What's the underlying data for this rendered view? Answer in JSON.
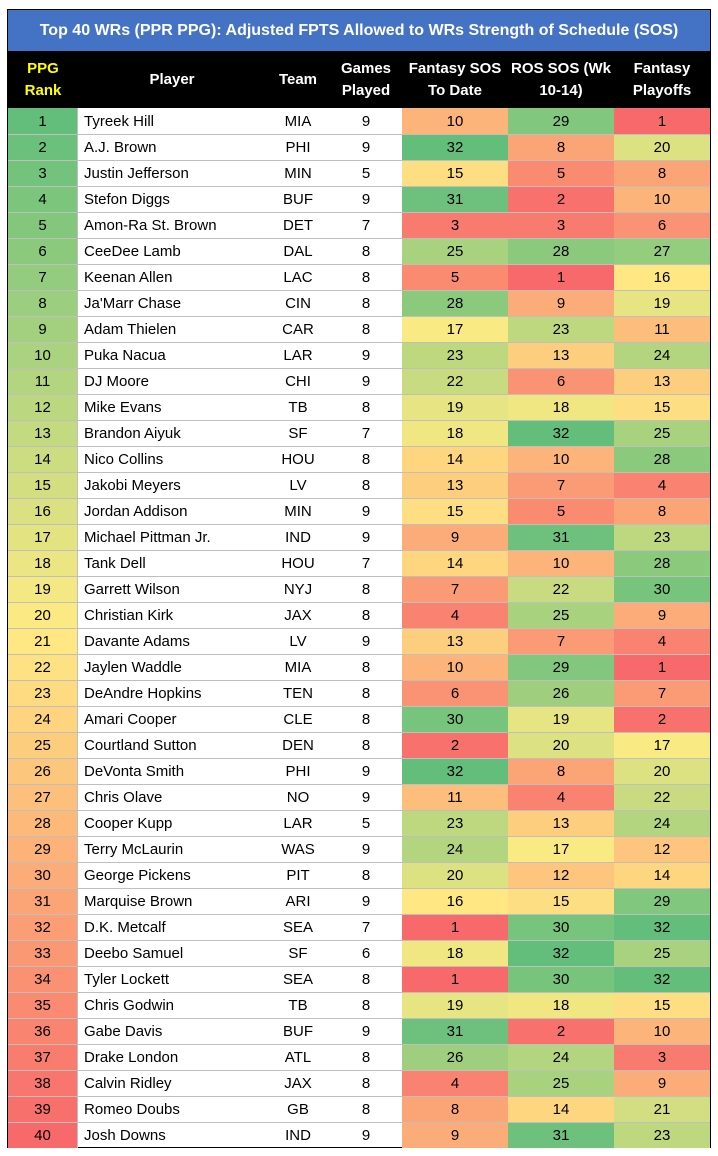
{
  "title": "Top 40 WRs (PPR PPG): Adjusted FPTS Allowed to WRs Strength of Schedule (SOS)",
  "headers": {
    "rank": "PPG Rank",
    "player": "Player",
    "team": "Team",
    "games": "Games Played",
    "sos_to_date": "Fantasy SOS To Date",
    "ros_sos": "ROS SOS (Wk 10-14)",
    "playoffs": "Fantasy Playoffs"
  },
  "rows": [
    {
      "rank": "1",
      "player": "Tyreek Hill",
      "team": "MIA",
      "games": "9",
      "sos": "10",
      "ros": "29",
      "playoffs": "1"
    },
    {
      "rank": "2",
      "player": "A.J. Brown",
      "team": "PHI",
      "games": "9",
      "sos": "32",
      "ros": "8",
      "playoffs": "20"
    },
    {
      "rank": "3",
      "player": "Justin Jefferson",
      "team": "MIN",
      "games": "5",
      "sos": "15",
      "ros": "5",
      "playoffs": "8"
    },
    {
      "rank": "4",
      "player": "Stefon Diggs",
      "team": "BUF",
      "games": "9",
      "sos": "31",
      "ros": "2",
      "playoffs": "10"
    },
    {
      "rank": "5",
      "player": "Amon-Ra St. Brown",
      "team": "DET",
      "games": "7",
      "sos": "3",
      "ros": "3",
      "playoffs": "6"
    },
    {
      "rank": "6",
      "player": "CeeDee Lamb",
      "team": "DAL",
      "games": "8",
      "sos": "25",
      "ros": "28",
      "playoffs": "27"
    },
    {
      "rank": "7",
      "player": "Keenan Allen",
      "team": "LAC",
      "games": "8",
      "sos": "5",
      "ros": "1",
      "playoffs": "16"
    },
    {
      "rank": "8",
      "player": "Ja'Marr Chase",
      "team": "CIN",
      "games": "8",
      "sos": "28",
      "ros": "9",
      "playoffs": "19"
    },
    {
      "rank": "9",
      "player": "Adam Thielen",
      "team": "CAR",
      "games": "8",
      "sos": "17",
      "ros": "23",
      "playoffs": "11"
    },
    {
      "rank": "10",
      "player": "Puka Nacua",
      "team": "LAR",
      "games": "9",
      "sos": "23",
      "ros": "13",
      "playoffs": "24"
    },
    {
      "rank": "11",
      "player": "DJ Moore",
      "team": "CHI",
      "games": "9",
      "sos": "22",
      "ros": "6",
      "playoffs": "13"
    },
    {
      "rank": "12",
      "player": "Mike Evans",
      "team": "TB",
      "games": "8",
      "sos": "19",
      "ros": "18",
      "playoffs": "15"
    },
    {
      "rank": "13",
      "player": "Brandon Aiyuk",
      "team": "SF",
      "games": "7",
      "sos": "18",
      "ros": "32",
      "playoffs": "25"
    },
    {
      "rank": "14",
      "player": "Nico Collins",
      "team": "HOU",
      "games": "8",
      "sos": "14",
      "ros": "10",
      "playoffs": "28"
    },
    {
      "rank": "15",
      "player": "Jakobi Meyers",
      "team": "LV",
      "games": "8",
      "sos": "13",
      "ros": "7",
      "playoffs": "4"
    },
    {
      "rank": "16",
      "player": "Jordan Addison",
      "team": "MIN",
      "games": "9",
      "sos": "15",
      "ros": "5",
      "playoffs": "8"
    },
    {
      "rank": "17",
      "player": "Michael Pittman Jr.",
      "team": "IND",
      "games": "9",
      "sos": "9",
      "ros": "31",
      "playoffs": "23"
    },
    {
      "rank": "18",
      "player": "Tank Dell",
      "team": "HOU",
      "games": "7",
      "sos": "14",
      "ros": "10",
      "playoffs": "28"
    },
    {
      "rank": "19",
      "player": "Garrett Wilson",
      "team": "NYJ",
      "games": "8",
      "sos": "7",
      "ros": "22",
      "playoffs": "30"
    },
    {
      "rank": "20",
      "player": "Christian Kirk",
      "team": "JAX",
      "games": "8",
      "sos": "4",
      "ros": "25",
      "playoffs": "9"
    },
    {
      "rank": "21",
      "player": "Davante Adams",
      "team": "LV",
      "games": "9",
      "sos": "13",
      "ros": "7",
      "playoffs": "4"
    },
    {
      "rank": "22",
      "player": "Jaylen Waddle",
      "team": "MIA",
      "games": "8",
      "sos": "10",
      "ros": "29",
      "playoffs": "1"
    },
    {
      "rank": "23",
      "player": "DeAndre Hopkins",
      "team": "TEN",
      "games": "8",
      "sos": "6",
      "ros": "26",
      "playoffs": "7"
    },
    {
      "rank": "24",
      "player": "Amari Cooper",
      "team": "CLE",
      "games": "8",
      "sos": "30",
      "ros": "19",
      "playoffs": "2"
    },
    {
      "rank": "25",
      "player": "Courtland Sutton",
      "team": "DEN",
      "games": "8",
      "sos": "2",
      "ros": "20",
      "playoffs": "17"
    },
    {
      "rank": "26",
      "player": "DeVonta Smith",
      "team": "PHI",
      "games": "9",
      "sos": "32",
      "ros": "8",
      "playoffs": "20"
    },
    {
      "rank": "27",
      "player": "Chris Olave",
      "team": "NO",
      "games": "9",
      "sos": "11",
      "ros": "4",
      "playoffs": "22"
    },
    {
      "rank": "28",
      "player": "Cooper Kupp",
      "team": "LAR",
      "games": "5",
      "sos": "23",
      "ros": "13",
      "playoffs": "24"
    },
    {
      "rank": "29",
      "player": "Terry McLaurin",
      "team": "WAS",
      "games": "9",
      "sos": "24",
      "ros": "17",
      "playoffs": "12"
    },
    {
      "rank": "30",
      "player": "George Pickens",
      "team": "PIT",
      "games": "8",
      "sos": "20",
      "ros": "12",
      "playoffs": "14"
    },
    {
      "rank": "31",
      "player": "Marquise Brown",
      "team": "ARI",
      "games": "9",
      "sos": "16",
      "ros": "15",
      "playoffs": "29"
    },
    {
      "rank": "32",
      "player": "D.K. Metcalf",
      "team": "SEA",
      "games": "7",
      "sos": "1",
      "ros": "30",
      "playoffs": "32"
    },
    {
      "rank": "33",
      "player": "Deebo Samuel",
      "team": "SF",
      "games": "6",
      "sos": "18",
      "ros": "32",
      "playoffs": "25"
    },
    {
      "rank": "34",
      "player": "Tyler Lockett",
      "team": "SEA",
      "games": "8",
      "sos": "1",
      "ros": "30",
      "playoffs": "32"
    },
    {
      "rank": "35",
      "player": "Chris Godwin",
      "team": "TB",
      "games": "8",
      "sos": "19",
      "ros": "18",
      "playoffs": "15"
    },
    {
      "rank": "36",
      "player": "Gabe Davis",
      "team": "BUF",
      "games": "9",
      "sos": "31",
      "ros": "2",
      "playoffs": "10"
    },
    {
      "rank": "37",
      "player": "Drake London",
      "team": "ATL",
      "games": "8",
      "sos": "26",
      "ros": "24",
      "playoffs": "3"
    },
    {
      "rank": "38",
      "player": "Calvin Ridley",
      "team": "JAX",
      "games": "8",
      "sos": "4",
      "ros": "25",
      "playoffs": "9"
    },
    {
      "rank": "39",
      "player": "Romeo Doubs",
      "team": "GB",
      "games": "8",
      "sos": "8",
      "ros": "14",
      "playoffs": "21"
    },
    {
      "rank": "40",
      "player": "Josh Downs",
      "team": "IND",
      "games": "9",
      "sos": "9",
      "ros": "31",
      "playoffs": "23"
    }
  ],
  "colors": {
    "title_bg": "#4472c4",
    "header_bg": "#000000",
    "header_rank_text": "#ffff00",
    "scale_low": "#f8696b",
    "scale_mid": "#ffeb84",
    "scale_high": "#63be7b"
  }
}
